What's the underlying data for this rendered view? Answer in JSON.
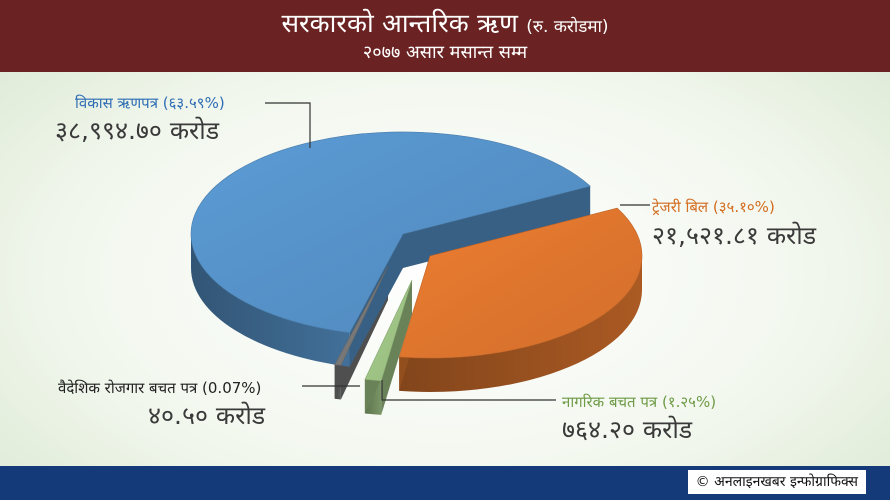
{
  "header": {
    "title": "सरकारको आन्तरिक ऋण",
    "title_unit": "(रु. करोडमा)",
    "subtitle": "२०७७ असार मसान्त सम्म"
  },
  "footer": {
    "credit": "© अनलाइनखबर इन्फोग्राफिक्स"
  },
  "colors": {
    "header_bg": "#6b2222",
    "footer_bg": "#143a7a",
    "development_bonds": "#5b9bd5",
    "treasury_bills": "#ed7d31",
    "citizen_savings": "#a9d18e",
    "foreign_employment": "#7f7f7f"
  },
  "chart_data": {
    "type": "pie",
    "style": "3d-exploded",
    "slices": [
      {
        "key": "dev",
        "name": "विकास ऋणपत्र (६३.५९%)",
        "value_text": "३८,९९४.७० करोड",
        "value": 38994.7,
        "percent": 63.59,
        "color": "#5b9bd5"
      },
      {
        "key": "tb",
        "name": "ट्रेजरी बिल (३५.१०%)",
        "value_text": "२१,५२१.८१ करोड",
        "value": 21521.81,
        "percent": 35.1,
        "color": "#ed7d31"
      },
      {
        "key": "cs",
        "name": "नागरिक बचत पत्र (१.२५%)",
        "value_text": "७६४.२० करोड",
        "value": 764.2,
        "percent": 1.25,
        "color": "#a9d18e"
      },
      {
        "key": "fe",
        "name": "वैदेशिक रोजगार बचत पत्र (0.07%)",
        "value_text": "४०.५० करोड",
        "value": 40.5,
        "percent": 0.07,
        "color": "#7f7f7f"
      }
    ]
  }
}
